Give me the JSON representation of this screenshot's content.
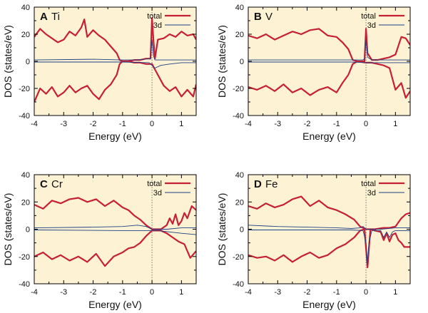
{
  "colors": {
    "background": "#fdf2d3",
    "total": "#c62036",
    "d3": "#1f3f86",
    "axis": "#000000",
    "zero_line": "#777777"
  },
  "chart_data": [
    {
      "type": "line",
      "panel_letter": "A",
      "element": "Ti",
      "xlabel": "Energy (eV)",
      "ylabel": "DOS (states/eV)",
      "xlim": [
        -4,
        1.5
      ],
      "ylim": [
        -40,
        40
      ],
      "xticks": [
        "-4",
        "-3",
        "-2",
        "-1",
        "0",
        "1"
      ],
      "yticks": [
        "40",
        "20",
        "0",
        "-20",
        "-40"
      ],
      "legend": [
        "total",
        "3d"
      ],
      "series": [
        {
          "name": "total (up)",
          "x": [
            -4,
            -3.8,
            -3.6,
            -3.4,
            -3.2,
            -3.0,
            -2.8,
            -2.6,
            -2.4,
            -2.3,
            -2.2,
            -2.0,
            -1.8,
            -1.6,
            -1.4,
            -1.2,
            -1.1,
            -1.0,
            -0.8,
            -0.6,
            -0.4,
            -0.2,
            -0.05,
            0.0,
            0.05,
            0.1,
            0.2,
            0.4,
            0.6,
            0.8,
            1.0,
            1.2,
            1.4,
            1.5
          ],
          "values": [
            18,
            24,
            20,
            17,
            14,
            16,
            22,
            19,
            25,
            31,
            18,
            23,
            19,
            16,
            11,
            6,
            1,
            0,
            0,
            1,
            1,
            2,
            2,
            32,
            15,
            2,
            16,
            17,
            20,
            18,
            22,
            19,
            20,
            16
          ]
        },
        {
          "name": "total (down)",
          "x": [
            -4,
            -3.8,
            -3.6,
            -3.4,
            -3.2,
            -3.0,
            -2.8,
            -2.6,
            -2.4,
            -2.2,
            -2.0,
            -1.8,
            -1.6,
            -1.4,
            -1.2,
            -1.1,
            -1.0,
            -0.8,
            -0.6,
            -0.4,
            -0.2,
            0.0,
            0.2,
            0.4,
            0.6,
            0.8,
            1.0,
            1.2,
            1.4,
            1.5
          ],
          "values": [
            -30,
            -20,
            -24,
            -19,
            -26,
            -23,
            -18,
            -23,
            -20,
            -18,
            -24,
            -28,
            -21,
            -17,
            -10,
            -2,
            0,
            0,
            -1,
            -1,
            -2,
            -2,
            -10,
            -18,
            -22,
            -19,
            -26,
            -21,
            -26,
            -17
          ]
        },
        {
          "name": "3d (up)",
          "x": [
            -4,
            -2,
            -1,
            -0.5,
            -0.05,
            0.0,
            0.05,
            0.1,
            0.5,
            1.0,
            1.5
          ],
          "values": [
            1,
            1.5,
            1,
            1,
            2,
            16,
            4,
            1,
            1,
            1,
            1
          ]
        },
        {
          "name": "3d (down)",
          "x": [
            -4,
            -1,
            -0.1,
            0.1,
            0.3,
            0.6,
            1.0,
            1.5
          ],
          "values": [
            -0.5,
            -0.5,
            -1,
            -5,
            -3,
            -2,
            -1,
            -1
          ]
        }
      ]
    },
    {
      "type": "line",
      "panel_letter": "B",
      "element": "V",
      "xlabel": "Energy (eV)",
      "ylabel": "DOS (states/eV)",
      "xlim": [
        -4,
        1.5
      ],
      "ylim": [
        -40,
        40
      ],
      "xticks": [
        "-4",
        "-3",
        "-2",
        "-1",
        "0",
        "1"
      ],
      "yticks": [
        "40",
        "20",
        "0",
        "-20",
        "-40"
      ],
      "legend": [
        "total",
        "3d"
      ],
      "series": [
        {
          "name": "total (up)",
          "x": [
            -4,
            -3.7,
            -3.4,
            -3.1,
            -2.8,
            -2.5,
            -2.2,
            -1.9,
            -1.6,
            -1.3,
            -1.0,
            -0.8,
            -0.6,
            -0.45,
            -0.3,
            -0.1,
            -0.05,
            0.0,
            0.05,
            0.2,
            0.4,
            0.6,
            0.8,
            1.0,
            1.2,
            1.35,
            1.5
          ],
          "values": [
            19,
            17,
            20,
            16,
            19,
            22,
            20,
            23,
            24,
            19,
            18,
            14,
            9,
            1,
            0,
            0,
            0,
            24,
            6,
            1,
            1,
            2,
            3,
            5,
            18,
            17,
            12
          ]
        },
        {
          "name": "total (down)",
          "x": [
            -4,
            -3.7,
            -3.4,
            -3.1,
            -2.8,
            -2.5,
            -2.2,
            -1.9,
            -1.6,
            -1.3,
            -1.0,
            -0.8,
            -0.6,
            -0.45,
            -0.3,
            0.0,
            0.2,
            0.4,
            0.6,
            0.8,
            1.0,
            1.2,
            1.35,
            1.5
          ],
          "values": [
            -19,
            -21,
            -18,
            -22,
            -17,
            -23,
            -20,
            -25,
            -21,
            -19,
            -23,
            -16,
            -10,
            -2,
            0,
            -1,
            -1,
            -2,
            -3,
            -5,
            -21,
            -16,
            -27,
            -22
          ]
        },
        {
          "name": "3d (up)",
          "x": [
            -4,
            -1,
            -0.1,
            -0.05,
            0.0,
            0.05,
            0.2,
            1.5
          ],
          "values": [
            1,
            1,
            1,
            2,
            16,
            3,
            1,
            1
          ]
        },
        {
          "name": "3d (down)",
          "x": [
            -4,
            -0.5,
            0.0,
            0.5,
            1.0,
            1.5
          ],
          "values": [
            -0.5,
            -0.5,
            -1,
            -1,
            -1,
            -1
          ]
        }
      ]
    },
    {
      "type": "line",
      "panel_letter": "C",
      "element": "Cr",
      "xlabel": "Energy (eV)",
      "ylabel": "DOS (states/eV)",
      "xlim": [
        -4,
        1.5
      ],
      "ylim": [
        -40,
        40
      ],
      "xticks": [
        "-4",
        "-3",
        "-2",
        "-1",
        "0",
        "1"
      ],
      "yticks": [
        "40",
        "20",
        "0",
        "-20",
        "-40"
      ],
      "legend": [
        "total",
        "3d"
      ],
      "series": [
        {
          "name": "total (up)",
          "x": [
            -4,
            -3.7,
            -3.4,
            -3.1,
            -2.8,
            -2.5,
            -2.2,
            -1.9,
            -1.6,
            -1.3,
            -1.0,
            -0.8,
            -0.6,
            -0.4,
            -0.2,
            0.0,
            0.3,
            0.5,
            0.6,
            0.7,
            0.8,
            0.9,
            1.0,
            1.1,
            1.2,
            1.35,
            1.5
          ],
          "values": [
            18,
            15,
            21,
            19,
            22,
            23,
            20,
            22,
            17,
            21,
            16,
            14,
            10,
            7,
            3,
            0,
            0,
            3,
            8,
            4,
            11,
            3,
            6,
            12,
            8,
            17,
            14
          ]
        },
        {
          "name": "total (down)",
          "x": [
            -4,
            -3.7,
            -3.4,
            -3.1,
            -2.8,
            -2.5,
            -2.2,
            -1.9,
            -1.6,
            -1.3,
            -1.0,
            -0.8,
            -0.6,
            -0.4,
            -0.2,
            0.0,
            0.3,
            0.5,
            0.7,
            0.9,
            1.1,
            1.3,
            1.5
          ],
          "values": [
            -20,
            -17,
            -22,
            -19,
            -23,
            -20,
            -24,
            -18,
            -27,
            -20,
            -17,
            -14,
            -13,
            -10,
            -5,
            -1,
            -1,
            -3,
            -6,
            -9,
            -11,
            -21,
            -16
          ]
        },
        {
          "name": "3d (up)",
          "x": [
            -4,
            -2,
            -1,
            -0.5,
            -0.2,
            0.0,
            0.5,
            1.0,
            1.5
          ],
          "values": [
            1,
            1.5,
            2,
            3,
            2,
            0,
            0,
            1,
            1
          ]
        },
        {
          "name": "3d (down)",
          "x": [
            -4,
            -1,
            -0.2,
            0.2,
            0.6,
            1.0,
            1.5
          ],
          "values": [
            -0.5,
            -1,
            -1,
            -1,
            -2,
            -3,
            -4
          ]
        }
      ]
    },
    {
      "type": "line",
      "panel_letter": "D",
      "element": "Fe",
      "xlabel": "Energy (eV)",
      "ylabel": "DOS (states/eV)",
      "xlim": [
        -4,
        1.5
      ],
      "ylim": [
        -40,
        40
      ],
      "xticks": [
        "-4",
        "-3",
        "-2",
        "-1",
        "0",
        "1"
      ],
      "yticks": [
        "40",
        "20",
        "0",
        "-20",
        "-40"
      ],
      "legend": [
        "total",
        "3d"
      ],
      "series": [
        {
          "name": "total (up)",
          "x": [
            -4,
            -3.7,
            -3.4,
            -3.1,
            -2.8,
            -2.5,
            -2.2,
            -1.9,
            -1.6,
            -1.3,
            -1.0,
            -0.7,
            -0.4,
            -0.2,
            0.0,
            0.3,
            0.6,
            0.8,
            1.0,
            1.1,
            1.2,
            1.35,
            1.5
          ],
          "values": [
            17,
            15,
            19,
            16,
            18,
            22,
            24,
            17,
            21,
            16,
            14,
            11,
            7,
            2,
            0,
            0,
            1,
            1,
            2,
            5,
            8,
            11,
            12
          ]
        },
        {
          "name": "total (down)",
          "x": [
            -4,
            -3.7,
            -3.4,
            -3.1,
            -2.8,
            -2.5,
            -2.2,
            -1.9,
            -1.6,
            -1.3,
            -1.0,
            -0.7,
            -0.4,
            -0.2,
            -0.05,
            0.0,
            0.05,
            0.1,
            0.15,
            0.3,
            0.5,
            0.6,
            0.7,
            0.8,
            0.9,
            1.0,
            1.1,
            1.2,
            1.3,
            1.5
          ],
          "values": [
            -19,
            -21,
            -20,
            -23,
            -19,
            -24,
            -20,
            -17,
            -21,
            -19,
            -14,
            -11,
            -6,
            -1,
            0,
            -14,
            -28,
            -14,
            0,
            -1,
            -2,
            -8,
            -3,
            -9,
            -4,
            -3,
            -8,
            -10,
            -13,
            -13
          ]
        },
        {
          "name": "3d (up)",
          "x": [
            -4,
            -3,
            -2,
            -1,
            -0.5,
            -0.2,
            -0.1,
            0.0,
            0.5,
            1.0,
            1.5
          ],
          "values": [
            3,
            2,
            1.5,
            1,
            0.5,
            1,
            2,
            0,
            0,
            1,
            1
          ]
        },
        {
          "name": "3d (down)",
          "x": [
            -4,
            -0.5,
            -0.1,
            0.0,
            0.05,
            0.1,
            0.2,
            0.5,
            0.6,
            0.7,
            0.8,
            0.9,
            1.0,
            1.5
          ],
          "values": [
            -0.5,
            -0.5,
            -1,
            -10,
            -26,
            -10,
            -1,
            -1,
            -6,
            -2,
            -6,
            -2,
            -1,
            -1
          ]
        }
      ]
    }
  ]
}
